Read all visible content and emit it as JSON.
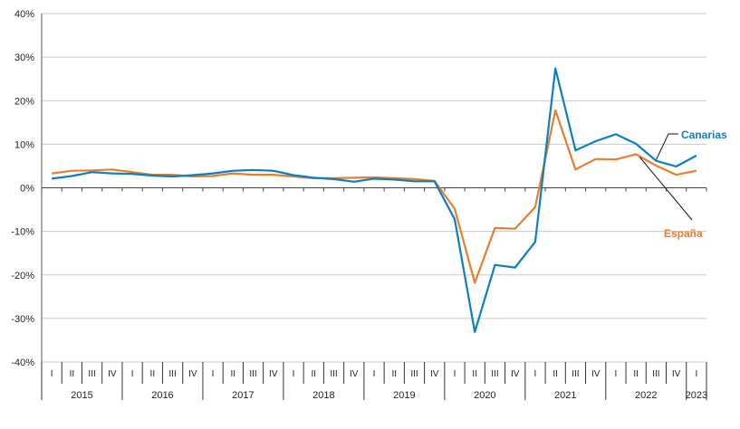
{
  "chart_data": {
    "type": "line",
    "title": "",
    "xlabel": "",
    "ylabel": "",
    "ylim": [
      -40,
      40
    ],
    "yticks": [
      -40,
      -30,
      -20,
      -10,
      0,
      10,
      20,
      30,
      40
    ],
    "ytick_labels": [
      "-40%",
      "-30%",
      "-20%",
      "-10%",
      "0%",
      "10%",
      "20%",
      "30%",
      "40%"
    ],
    "grid": "horizontal",
    "quarters": [
      "I",
      "II",
      "III",
      "IV",
      "I",
      "II",
      "III",
      "IV",
      "I",
      "II",
      "III",
      "IV",
      "I",
      "II",
      "III",
      "IV",
      "I",
      "II",
      "III",
      "IV",
      "I",
      "II",
      "III",
      "IV",
      "I",
      "II",
      "III",
      "IV",
      "I",
      "II",
      "III",
      "IV",
      "I"
    ],
    "years": [
      {
        "label": "2015",
        "start": 0,
        "end": 4
      },
      {
        "label": "2016",
        "start": 4,
        "end": 8
      },
      {
        "label": "2017",
        "start": 8,
        "end": 12
      },
      {
        "label": "2018",
        "start": 12,
        "end": 16
      },
      {
        "label": "2019",
        "start": 16,
        "end": 20
      },
      {
        "label": "2020",
        "start": 20,
        "end": 24
      },
      {
        "label": "2021",
        "start": 24,
        "end": 28
      },
      {
        "label": "2022",
        "start": 28,
        "end": 32
      },
      {
        "label": "2023",
        "start": 32,
        "end": 33
      }
    ],
    "series": [
      {
        "name": "Canarias",
        "color": "#0a7fc2",
        "values": [
          2.1,
          2.7,
          3.6,
          3.3,
          3.2,
          2.8,
          2.6,
          2.9,
          3.3,
          3.9,
          4.1,
          3.9,
          2.9,
          2.3,
          2.0,
          1.4,
          2.1,
          1.9,
          1.5,
          1.5,
          -7.2,
          -33.1,
          -17.7,
          -18.3,
          -12.4,
          27.4,
          8.6,
          10.7,
          12.3,
          10.1,
          6.2,
          4.9,
          7.4
        ]
      },
      {
        "name": "España",
        "color": "#e87d2e",
        "values": [
          3.3,
          3.9,
          4.0,
          4.2,
          3.6,
          3.0,
          3.0,
          2.6,
          2.7,
          3.3,
          3.0,
          3.0,
          2.6,
          2.2,
          2.2,
          2.3,
          2.4,
          2.2,
          2.0,
          1.6,
          -4.8,
          -21.8,
          -9.2,
          -9.4,
          -4.4,
          17.8,
          4.2,
          6.6,
          6.5,
          7.7,
          5.1,
          3.0,
          3.9
        ]
      }
    ]
  }
}
